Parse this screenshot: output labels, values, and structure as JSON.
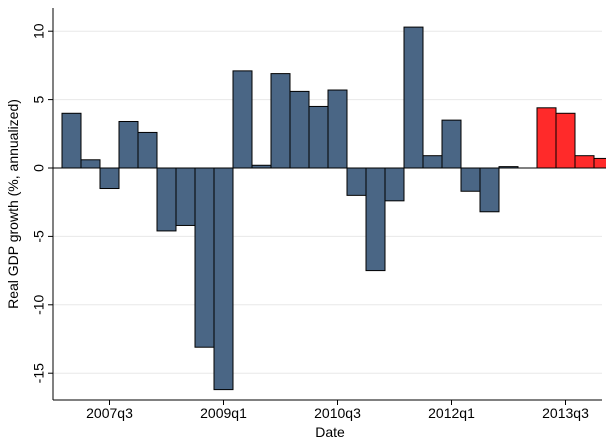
{
  "chart_data": {
    "type": "bar",
    "xlabel": "Date",
    "ylabel": "Real GDP growth (%, annualized)",
    "ylim": [
      -17,
      11
    ],
    "yticks": [
      10,
      5,
      0,
      -5,
      -10,
      -15
    ],
    "grid": true,
    "x_tick_labels": [
      {
        "label": "2007q3",
        "index": 2.5
      },
      {
        "label": "2009q1",
        "index": 8.5
      },
      {
        "label": "2010q3",
        "index": 14.5
      },
      {
        "label": "2012q1",
        "index": 20.5
      },
      {
        "label": "2013q3",
        "index": 26.5
      }
    ],
    "series": [
      {
        "color": "#4a6685",
        "categories": [
          "2007q1",
          "2007q2",
          "2007q3",
          "2007q4",
          "2008q1",
          "2008q2",
          "2008q3",
          "2008q4",
          "2009q1",
          "2009q2",
          "2009q3",
          "2009q4",
          "2010q1",
          "2010q2",
          "2010q3",
          "2010q4",
          "2011q1",
          "2011q2",
          "2011q3",
          "2011q4",
          "2012q1",
          "2012q2",
          "2012q3",
          "2012q4",
          "2013q1"
        ],
        "values": [
          4.0,
          0.6,
          -1.5,
          3.4,
          2.6,
          -4.6,
          -4.2,
          -13.1,
          -16.2,
          7.1,
          0.2,
          6.9,
          5.6,
          4.5,
          5.7,
          -2.0,
          -7.5,
          -2.4,
          10.3,
          0.9,
          3.5,
          -1.7,
          -3.2,
          0.1,
          0.0
        ]
      },
      {
        "color": "#ff2a2a",
        "categories": [
          "2012q2f",
          "2012q3f",
          "2012q4f",
          "2013q1f"
        ],
        "values": [
          4.4,
          4.0,
          0.9,
          0.7
        ]
      }
    ]
  }
}
